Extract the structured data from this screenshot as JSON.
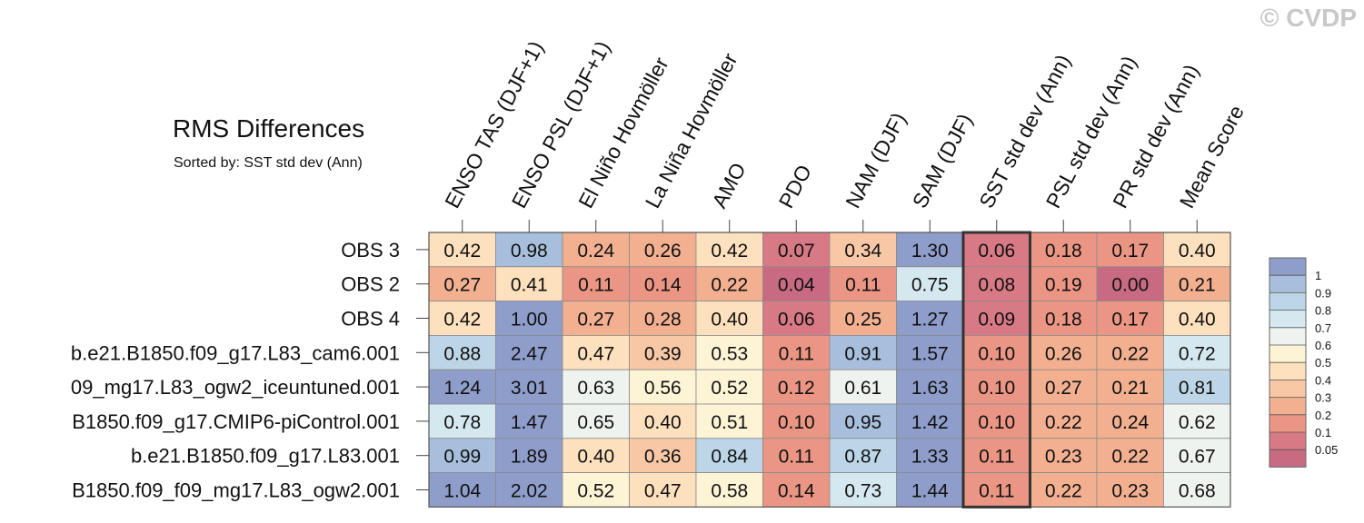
{
  "watermark": "© CVDP",
  "chart_data": {
    "type": "heatmap",
    "title": "RMS Differences",
    "subtitle": "Sorted by: SST std dev (Ann)",
    "highlight_column": "SST std dev (Ann)",
    "columns": [
      "ENSO TAS (DJF+1)",
      "ENSO PSL (DJF+1)",
      "El Niño Hovmöller",
      "La Niña Hovmöller",
      "AMO",
      "PDO",
      "NAM (DJF)",
      "SAM (DJF)",
      "SST std dev (Ann)",
      "PSL std dev (Ann)",
      "PR std dev (Ann)",
      "Mean Score"
    ],
    "rows": [
      "OBS 3",
      "OBS 2",
      "OBS 4",
      "b.e21.B1850.f09_g17.L83_cam6.001",
      "09_mg17.L83_ogw2_iceuntuned.001",
      "B1850.f09_g17.CMIP6-piControl.001",
      "b.e21.B1850.f09_g17.L83.001",
      "B1850.f09_f09_mg17.L83_ogw2.001"
    ],
    "values": [
      [
        0.42,
        0.98,
        0.24,
        0.26,
        0.42,
        0.07,
        0.34,
        1.3,
        0.06,
        0.18,
        0.17,
        0.4
      ],
      [
        0.27,
        0.41,
        0.11,
        0.14,
        0.22,
        0.04,
        0.11,
        0.75,
        0.08,
        0.19,
        0.0,
        0.21
      ],
      [
        0.42,
        1.0,
        0.27,
        0.28,
        0.4,
        0.06,
        0.25,
        1.27,
        0.09,
        0.18,
        0.17,
        0.4
      ],
      [
        0.88,
        2.47,
        0.47,
        0.39,
        0.53,
        0.11,
        0.91,
        1.57,
        0.1,
        0.26,
        0.22,
        0.72
      ],
      [
        1.24,
        3.01,
        0.63,
        0.56,
        0.52,
        0.12,
        0.61,
        1.63,
        0.1,
        0.27,
        0.21,
        0.81
      ],
      [
        0.78,
        1.47,
        0.65,
        0.4,
        0.51,
        0.1,
        0.95,
        1.42,
        0.1,
        0.22,
        0.24,
        0.62
      ],
      [
        0.99,
        1.89,
        0.4,
        0.36,
        0.84,
        0.11,
        0.87,
        1.33,
        0.11,
        0.23,
        0.22,
        0.67
      ],
      [
        1.04,
        2.02,
        0.52,
        0.47,
        0.58,
        0.14,
        0.73,
        1.44,
        0.11,
        0.22,
        0.23,
        0.68
      ]
    ],
    "colorbar": {
      "levels": [
        "1",
        "0.9",
        "0.8",
        "0.7",
        "0.6",
        "0.5",
        "0.4",
        "0.3",
        "0.2",
        "0.1",
        "0.05"
      ],
      "colors": [
        "#8f9dcb",
        "#a7bfdc",
        "#bdd6e7",
        "#d6e8ef",
        "#eef3f0",
        "#fdf4d6",
        "#fde0bd",
        "#f8c8a6",
        "#f2b091",
        "#eb9684",
        "#d77a85",
        "#c86b82"
      ]
    }
  }
}
